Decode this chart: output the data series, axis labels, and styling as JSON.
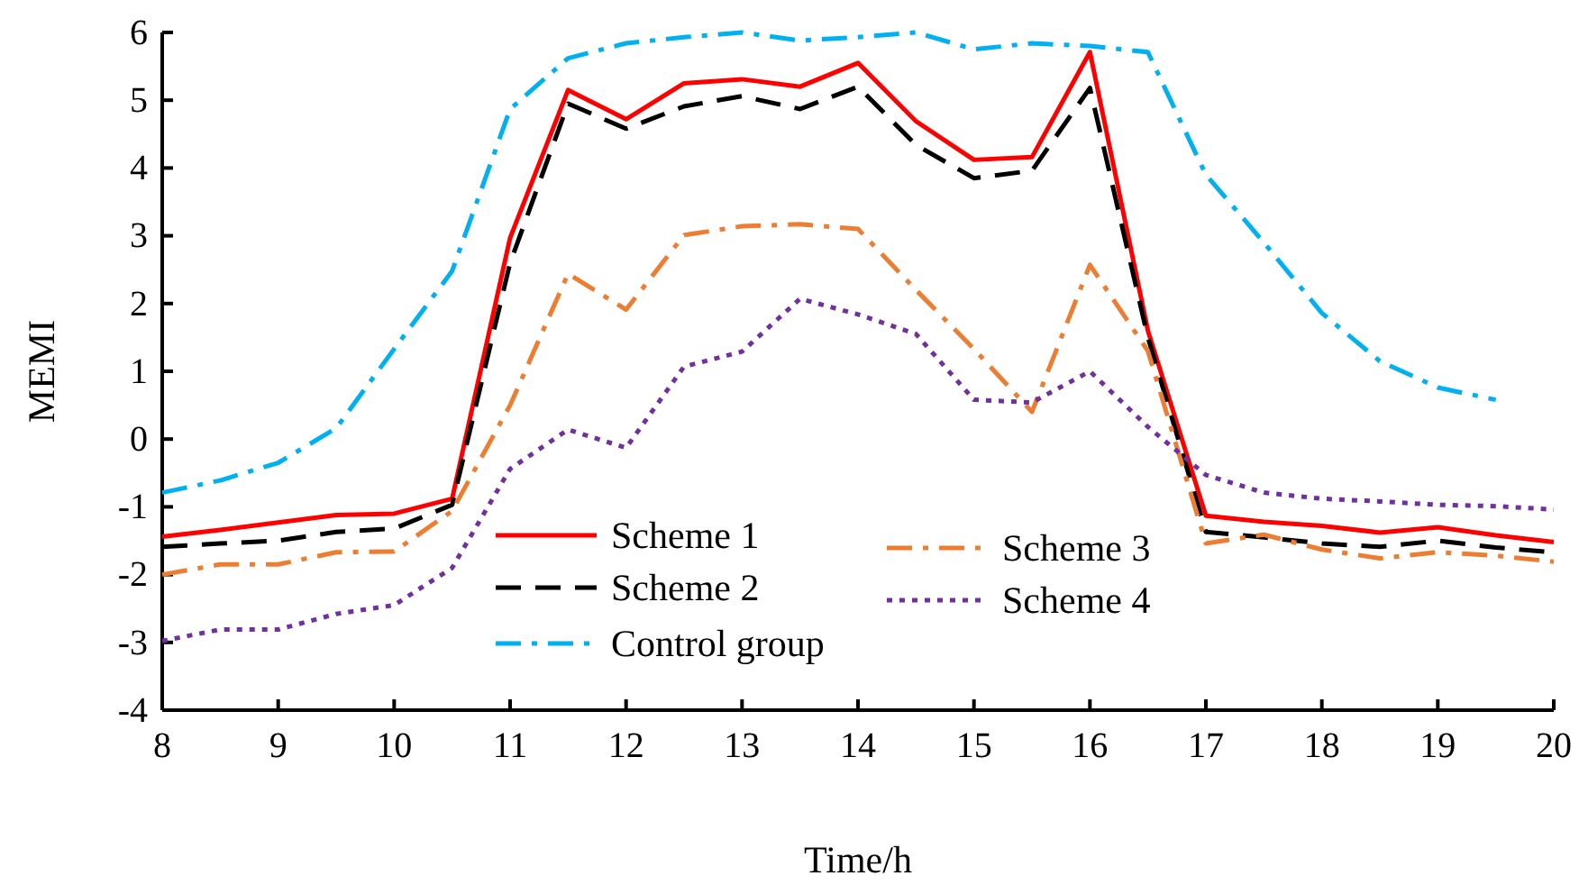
{
  "chart_data": {
    "type": "line",
    "xlabel": "Time/h",
    "ylabel": "MEMI",
    "x": [
      8,
      8.5,
      9,
      9.5,
      10,
      10.5,
      11,
      11.5,
      12,
      12.5,
      13,
      13.5,
      14,
      14.5,
      15,
      15.5,
      16,
      16.5,
      17,
      17.5,
      18,
      18.5,
      19,
      19.5,
      20
    ],
    "series": [
      {
        "name": "Scheme 1",
        "color": "#ff0000",
        "line_style": "solid",
        "values": [
          -1.44,
          -1.34,
          -1.23,
          -1.12,
          -1.1,
          -0.88,
          2.97,
          5.15,
          4.72,
          5.25,
          5.31,
          5.2,
          5.55,
          4.69,
          4.12,
          4.16,
          5.71,
          1.6,
          -1.13,
          -1.22,
          -1.28,
          -1.38,
          -1.3,
          -1.42,
          -1.52
        ]
      },
      {
        "name": "Scheme 2",
        "color": "#000000",
        "line_style": "dashed",
        "values": [
          -1.59,
          -1.54,
          -1.5,
          -1.37,
          -1.32,
          -0.97,
          2.6,
          4.95,
          4.58,
          4.91,
          5.06,
          4.87,
          5.2,
          4.34,
          3.85,
          3.96,
          5.18,
          1.5,
          -1.37,
          -1.45,
          -1.54,
          -1.59,
          -1.5,
          -1.6,
          -1.67
        ]
      },
      {
        "name": "Control group",
        "color": "#00b0f0",
        "line_style": "dashdot",
        "values": [
          -0.79,
          -0.61,
          -0.35,
          0.16,
          1.33,
          2.48,
          4.87,
          5.62,
          5.84,
          5.93,
          6,
          5.88,
          5.93,
          6,
          5.75,
          5.84,
          5.8,
          5.71,
          3.9,
          2.9,
          1.86,
          1.15,
          0.76,
          0.58,
          null
        ]
      },
      {
        "name": "Scheme 3",
        "color": "#ed7d31",
        "line_style": "dashdot",
        "values": [
          -2,
          -1.85,
          -1.85,
          -1.67,
          -1.66,
          -1.06,
          0.5,
          2.44,
          1.91,
          3.01,
          3.14,
          3.17,
          3.1,
          2.2,
          1.33,
          0.4,
          2.57,
          1.3,
          -1.54,
          -1.41,
          -1.63,
          -1.76,
          -1.67,
          -1.72,
          -1.81
        ]
      },
      {
        "name": "Scheme 4",
        "color": "#7030a0",
        "line_style": "dotted",
        "values": [
          -2.98,
          -2.81,
          -2.81,
          -2.58,
          -2.45,
          -1.9,
          -0.44,
          0.14,
          -0.13,
          1.07,
          1.29,
          2.07,
          1.84,
          1.55,
          0.58,
          0.54,
          1,
          0.18,
          -0.53,
          -0.79,
          -0.88,
          -0.92,
          -0.97,
          -0.99,
          -1.04
        ]
      }
    ],
    "xlim": [
      8,
      20
    ],
    "xticks": [
      8,
      9,
      10,
      11,
      12,
      13,
      14,
      15,
      16,
      17,
      18,
      19,
      20
    ],
    "ylim": [
      -4,
      6
    ],
    "yticks": [
      -4,
      -3,
      -2,
      -1,
      0,
      1,
      2,
      3,
      4,
      5,
      6
    ],
    "grid": false,
    "legend": "bottom",
    "marker": "none"
  }
}
